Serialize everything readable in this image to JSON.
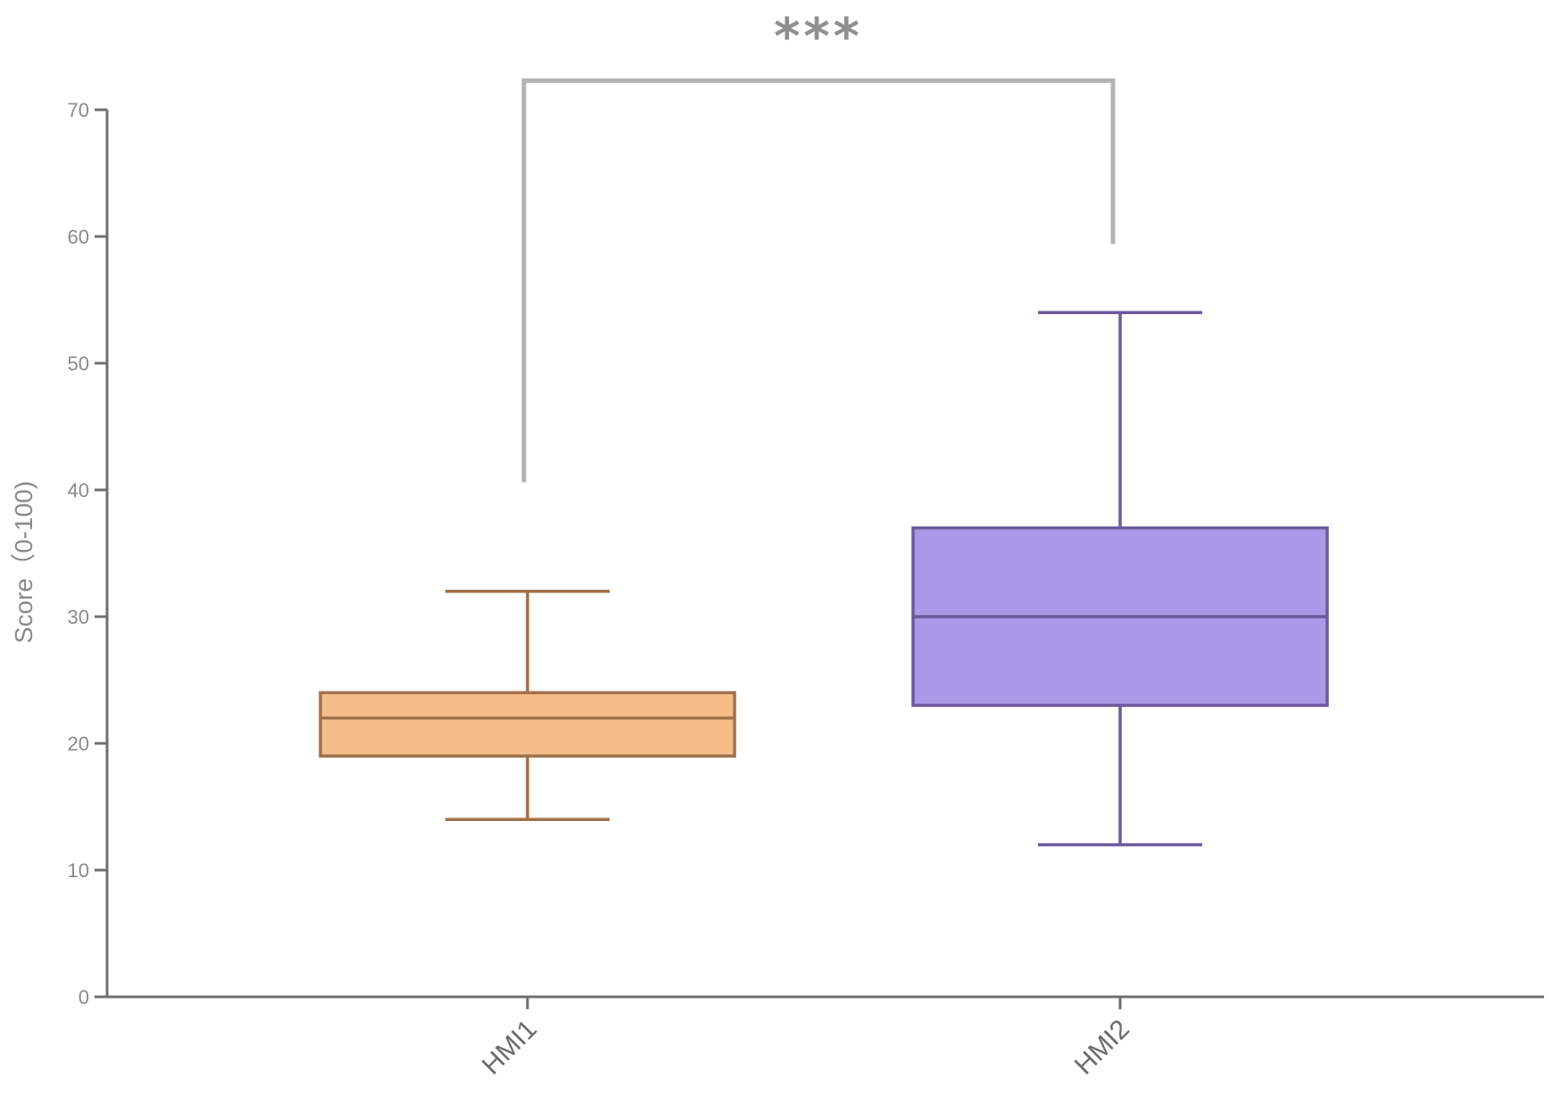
{
  "chart_data": {
    "type": "boxplot",
    "title": "",
    "xlabel": "",
    "ylabel": "Score（0-100)",
    "ylim": [
      0,
      70
    ],
    "yticks": [
      0,
      10,
      20,
      30,
      40,
      50,
      60,
      70
    ],
    "grid": false,
    "categories": [
      "HMI1",
      "HMI2"
    ],
    "boxes": [
      {
        "category": "HMI1",
        "min": 14,
        "q1": 19,
        "median": 22,
        "q3": 24,
        "max": 32,
        "fill": "#f5bd8a",
        "stroke": "#a0714a"
      },
      {
        "category": "HMI2",
        "min": 12,
        "q1": 23,
        "median": 30,
        "q3": 37,
        "max": 54,
        "fill": "#a89ae8",
        "stroke": "#6a5a9e"
      }
    ],
    "significance": {
      "label": "***",
      "from": "HMI1",
      "to": "HMI2",
      "bracket_top": 72.3,
      "left_leg_bottom": 40.6,
      "right_leg_bottom": 59.4,
      "color": "#b3b3b3"
    },
    "axis_color": "#6f6f6f"
  }
}
